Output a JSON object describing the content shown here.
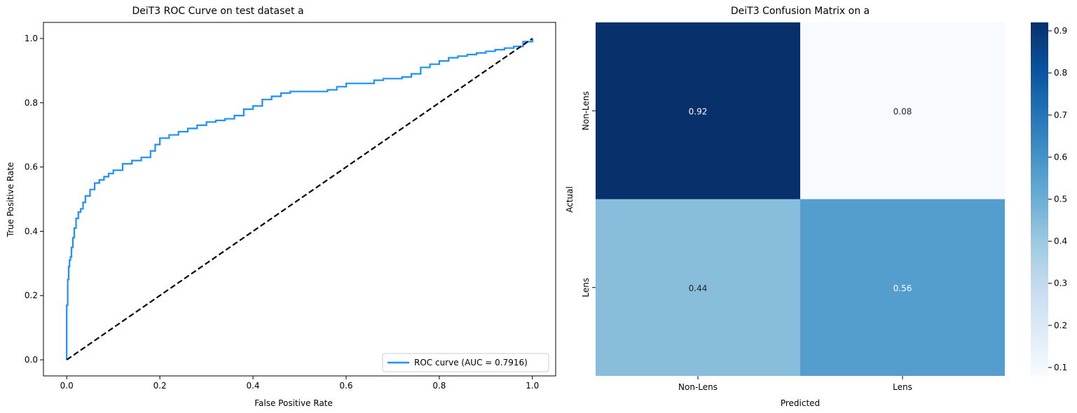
{
  "chart_data": [
    {
      "type": "line",
      "title": "DeiT3 ROC Curve on test dataset a",
      "xlabel": "False Positive Rate",
      "ylabel": "True Positive Rate",
      "xlim": [
        -0.05,
        1.05
      ],
      "ylim": [
        -0.05,
        1.05
      ],
      "xticks": [
        0.0,
        0.2,
        0.4,
        0.6,
        0.8,
        1.0
      ],
      "yticks": [
        0.0,
        0.2,
        0.4,
        0.6,
        0.8,
        1.0
      ],
      "tick_labels": [
        "0.0",
        "0.2",
        "0.4",
        "0.6",
        "0.8",
        "1.0"
      ],
      "grid": false,
      "legend_position": "lower right",
      "series": [
        {
          "name": "ROC curve (AUC = 0.7916)",
          "color": "#1e90ff",
          "x": [
            0.0,
            0.0,
            0.002,
            0.004,
            0.006,
            0.008,
            0.01,
            0.013,
            0.016,
            0.02,
            0.025,
            0.03,
            0.035,
            0.04,
            0.05,
            0.06,
            0.07,
            0.08,
            0.09,
            0.1,
            0.12,
            0.14,
            0.16,
            0.18,
            0.19,
            0.2,
            0.22,
            0.24,
            0.26,
            0.28,
            0.3,
            0.32,
            0.34,
            0.36,
            0.38,
            0.4,
            0.42,
            0.44,
            0.46,
            0.48,
            0.5,
            0.52,
            0.54,
            0.56,
            0.58,
            0.6,
            0.62,
            0.64,
            0.66,
            0.68,
            0.7,
            0.72,
            0.74,
            0.76,
            0.78,
            0.8,
            0.82,
            0.84,
            0.86,
            0.88,
            0.9,
            0.92,
            0.94,
            0.96,
            0.98,
            1.0
          ],
          "y": [
            0.0,
            0.17,
            0.25,
            0.29,
            0.31,
            0.32,
            0.35,
            0.38,
            0.41,
            0.44,
            0.46,
            0.47,
            0.49,
            0.51,
            0.53,
            0.55,
            0.56,
            0.57,
            0.58,
            0.59,
            0.61,
            0.62,
            0.63,
            0.65,
            0.67,
            0.69,
            0.7,
            0.71,
            0.72,
            0.73,
            0.74,
            0.745,
            0.75,
            0.76,
            0.78,
            0.79,
            0.81,
            0.82,
            0.83,
            0.835,
            0.835,
            0.835,
            0.835,
            0.84,
            0.85,
            0.86,
            0.86,
            0.86,
            0.87,
            0.875,
            0.875,
            0.88,
            0.89,
            0.91,
            0.92,
            0.93,
            0.94,
            0.945,
            0.95,
            0.955,
            0.96,
            0.965,
            0.97,
            0.975,
            0.99,
            1.0
          ]
        },
        {
          "color": "#000000",
          "style": "dashed",
          "x": [
            0.0,
            1.0
          ],
          "y": [
            0.0,
            1.0
          ]
        }
      ]
    },
    {
      "type": "heatmap",
      "title": "DeiT3 Confusion Matrix on a",
      "xlabel": "Predicted",
      "ylabel": "Actual",
      "x_categories": [
        "Non-Lens",
        "Lens"
      ],
      "y_categories": [
        "Non-Lens",
        "Lens"
      ],
      "values": [
        [
          0.92,
          0.08
        ],
        [
          0.44,
          0.56
        ]
      ],
      "annotations": [
        [
          "0.92",
          "0.08"
        ],
        [
          "0.44",
          "0.56"
        ]
      ],
      "colormap": "Blues",
      "colorbar_range": [
        0.08,
        0.92
      ],
      "colorbar_ticks": [
        0.1,
        0.2,
        0.3,
        0.4,
        0.5,
        0.6,
        0.7,
        0.8,
        0.9
      ],
      "colorbar_tick_labels": [
        "0.1",
        "0.2",
        "0.3",
        "0.4",
        "0.5",
        "0.6",
        "0.7",
        "0.8",
        "0.9"
      ]
    }
  ]
}
